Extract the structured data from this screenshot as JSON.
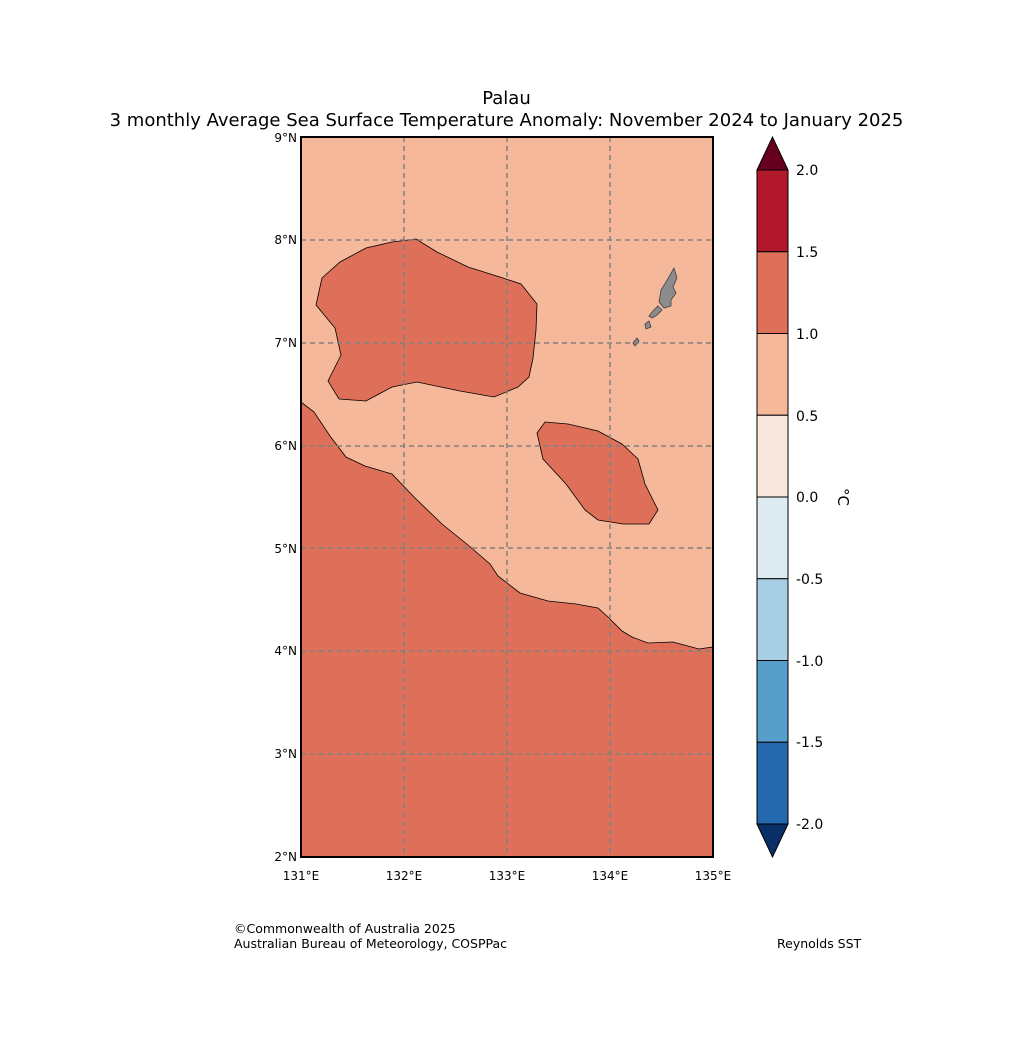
{
  "title": "Palau",
  "subtitle": "3 monthly Average Sea Surface Temperature Anomaly: November 2024 to January 2025",
  "map": {
    "lon_labels": [
      "131°E",
      "132°E",
      "133°E",
      "134°E",
      "135°E"
    ],
    "lat_labels": [
      "9°N",
      "8°N",
      "7°N",
      "6°N",
      "5°N",
      "4°N",
      "3°N",
      "2°N"
    ],
    "background_class": "0.5 to 1.0",
    "region_class": "1.0 to 1.5",
    "regions": [
      "northwest warm patch",
      "central east warm patch",
      "southern warm zone"
    ],
    "land": "Palau islands"
  },
  "colorbar": {
    "unit": "°C",
    "ticks": [
      "2.0",
      "1.5",
      "1.0",
      "0.5",
      "0.0",
      "-0.5",
      "-1.0",
      "-1.5",
      "-2.0"
    ],
    "bins": [
      {
        "range": "> 2.0",
        "color": "#67001f"
      },
      {
        "range": "1.5 to 2.0",
        "color": "#b2182b"
      },
      {
        "range": "1.0 to 1.5",
        "color": "#de6f58"
      },
      {
        "range": "0.5 to 1.0",
        "color": "#f6b89a"
      },
      {
        "range": "0.0 to 0.5",
        "color": "#f9e7dd"
      },
      {
        "range": "-0.5 to 0.0",
        "color": "#deebf3"
      },
      {
        "range": "-1.0 to -0.5",
        "color": "#a8cfe3"
      },
      {
        "range": "-1.5 to -1.0",
        "color": "#559fca"
      },
      {
        "range": "-2.0 to -1.5",
        "color": "#2468ad"
      },
      {
        "range": "< -2.0",
        "color": "#083066"
      }
    ]
  },
  "footer": {
    "copyright": "©Commonwealth of Australia 2025",
    "agency": "Australian Bureau of Meteorology, COSPPac",
    "source": "Reynolds SST"
  }
}
